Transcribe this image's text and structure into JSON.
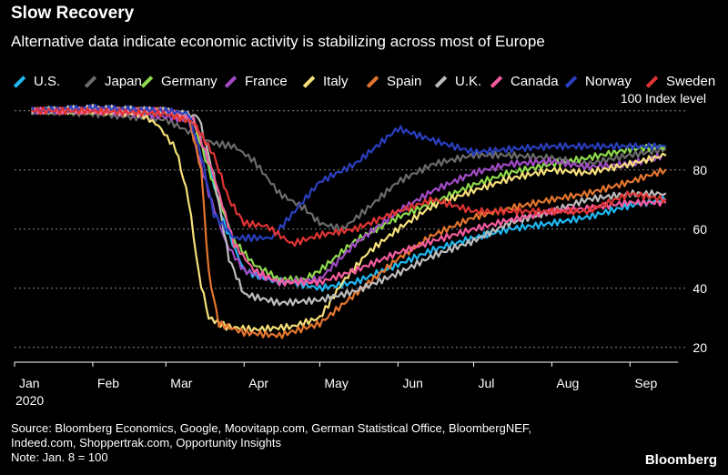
{
  "header": {
    "title": "Slow Recovery",
    "subtitle": "Alternative data indicate economic activity is stabilizing across most of Europe"
  },
  "footer": {
    "source_line1": "Source: Bloomberg Economics, Google, Moovitapp.com, German Statistical Office, BloombergNEF,",
    "source_line2": "Indeed.com, Shoppertrak.com, Opportunity Insights",
    "note": "Note: Jan. 8 = 100",
    "brand": "Bloomberg"
  },
  "chart_data": {
    "type": "line",
    "y_unit_label": "100 Index level",
    "year_label": "2020",
    "ylim": [
      15,
      103
    ],
    "y_ticks": [
      20,
      40,
      60,
      80
    ],
    "x_tick_labels": [
      "Jan",
      "Feb",
      "Mar",
      "Apr",
      "May",
      "Jun",
      "Jul",
      "Aug",
      "Sep"
    ],
    "x_tick_dates": [
      "2020-01-01",
      "2020-02-01",
      "2020-03-01",
      "2020-04-01",
      "2020-05-01",
      "2020-06-01",
      "2020-07-01",
      "2020-08-01",
      "2020-09-01"
    ],
    "xlim": [
      "2020-01-01",
      "2020-09-20"
    ],
    "grid": "horizontal dashed",
    "legend_position": "top",
    "series": [
      {
        "name": "U.S.",
        "color": "#1fb7f2",
        "points": [
          [
            "2020-01-08",
            100
          ],
          [
            "2020-02-01",
            100
          ],
          [
            "2020-03-01",
            100
          ],
          [
            "2020-03-12",
            97
          ],
          [
            "2020-03-18",
            82
          ],
          [
            "2020-03-24",
            62
          ],
          [
            "2020-04-01",
            46
          ],
          [
            "2020-04-10",
            43
          ],
          [
            "2020-04-20",
            42
          ],
          [
            "2020-05-01",
            40
          ],
          [
            "2020-05-15",
            42
          ],
          [
            "2020-06-01",
            48
          ],
          [
            "2020-06-15",
            53
          ],
          [
            "2020-07-01",
            57
          ],
          [
            "2020-07-15",
            60
          ],
          [
            "2020-08-01",
            62
          ],
          [
            "2020-08-15",
            64
          ],
          [
            "2020-09-01",
            68
          ],
          [
            "2020-09-15",
            70
          ]
        ]
      },
      {
        "name": "Japan",
        "color": "#6b6b6b",
        "points": [
          [
            "2020-01-08",
            100
          ],
          [
            "2020-02-01",
            99
          ],
          [
            "2020-03-01",
            97
          ],
          [
            "2020-03-12",
            92
          ],
          [
            "2020-03-20",
            89
          ],
          [
            "2020-03-28",
            88
          ],
          [
            "2020-04-05",
            83
          ],
          [
            "2020-04-15",
            72
          ],
          [
            "2020-04-25",
            67
          ],
          [
            "2020-05-01",
            62
          ],
          [
            "2020-05-10",
            60
          ],
          [
            "2020-05-20",
            67
          ],
          [
            "2020-06-01",
            76
          ],
          [
            "2020-06-15",
            82
          ],
          [
            "2020-07-01",
            85
          ],
          [
            "2020-07-15",
            85
          ],
          [
            "2020-08-01",
            84
          ],
          [
            "2020-08-15",
            82
          ],
          [
            "2020-09-01",
            85
          ],
          [
            "2020-09-15",
            87
          ]
        ]
      },
      {
        "name": "Germany",
        "color": "#8ed94c",
        "points": [
          [
            "2020-01-08",
            100
          ],
          [
            "2020-02-01",
            100
          ],
          [
            "2020-03-01",
            100
          ],
          [
            "2020-03-12",
            96
          ],
          [
            "2020-03-20",
            75
          ],
          [
            "2020-03-28",
            56
          ],
          [
            "2020-04-05",
            48
          ],
          [
            "2020-04-15",
            43
          ],
          [
            "2020-04-25",
            43
          ],
          [
            "2020-05-01",
            46
          ],
          [
            "2020-05-15",
            56
          ],
          [
            "2020-06-01",
            64
          ],
          [
            "2020-06-15",
            69
          ],
          [
            "2020-07-01",
            75
          ],
          [
            "2020-07-15",
            79
          ],
          [
            "2020-08-01",
            82
          ],
          [
            "2020-08-15",
            84
          ],
          [
            "2020-09-01",
            87
          ],
          [
            "2020-09-15",
            88
          ]
        ]
      },
      {
        "name": "France",
        "color": "#a24cc6",
        "points": [
          [
            "2020-01-08",
            100
          ],
          [
            "2020-02-01",
            100
          ],
          [
            "2020-02-15",
            99
          ],
          [
            "2020-03-01",
            98
          ],
          [
            "2020-03-10",
            97
          ],
          [
            "2020-03-18",
            72
          ],
          [
            "2020-03-25",
            55
          ],
          [
            "2020-04-01",
            46
          ],
          [
            "2020-04-15",
            42
          ],
          [
            "2020-05-01",
            43
          ],
          [
            "2020-05-15",
            55
          ],
          [
            "2020-06-01",
            66
          ],
          [
            "2020-06-15",
            73
          ],
          [
            "2020-07-01",
            79
          ],
          [
            "2020-07-15",
            82
          ],
          [
            "2020-08-01",
            83
          ],
          [
            "2020-08-15",
            81
          ],
          [
            "2020-09-01",
            82
          ],
          [
            "2020-09-15",
            85
          ]
        ]
      },
      {
        "name": "Italy",
        "color": "#f6e07a",
        "points": [
          [
            "2020-01-08",
            100
          ],
          [
            "2020-02-01",
            100
          ],
          [
            "2020-02-20",
            99
          ],
          [
            "2020-02-27",
            95
          ],
          [
            "2020-03-05",
            87
          ],
          [
            "2020-03-10",
            70
          ],
          [
            "2020-03-14",
            45
          ],
          [
            "2020-03-18",
            30
          ],
          [
            "2020-03-25",
            27
          ],
          [
            "2020-04-05",
            26
          ],
          [
            "2020-04-20",
            27
          ],
          [
            "2020-05-01",
            30
          ],
          [
            "2020-05-10",
            42
          ],
          [
            "2020-05-20",
            52
          ],
          [
            "2020-06-01",
            60
          ],
          [
            "2020-06-15",
            68
          ],
          [
            "2020-07-01",
            73
          ],
          [
            "2020-07-15",
            77
          ],
          [
            "2020-08-01",
            80
          ],
          [
            "2020-08-15",
            79
          ],
          [
            "2020-09-01",
            82
          ],
          [
            "2020-09-15",
            85
          ]
        ]
      },
      {
        "name": "Spain",
        "color": "#e3752e",
        "points": [
          [
            "2020-01-08",
            100
          ],
          [
            "2020-02-01",
            100
          ],
          [
            "2020-03-01",
            100
          ],
          [
            "2020-03-10",
            98
          ],
          [
            "2020-03-15",
            80
          ],
          [
            "2020-03-18",
            45
          ],
          [
            "2020-03-22",
            28
          ],
          [
            "2020-04-01",
            25
          ],
          [
            "2020-04-15",
            24
          ],
          [
            "2020-05-01",
            28
          ],
          [
            "2020-05-15",
            38
          ],
          [
            "2020-06-01",
            50
          ],
          [
            "2020-06-15",
            58
          ],
          [
            "2020-07-01",
            64
          ],
          [
            "2020-07-15",
            67
          ],
          [
            "2020-08-01",
            70
          ],
          [
            "2020-08-15",
            72
          ],
          [
            "2020-09-01",
            76
          ],
          [
            "2020-09-15",
            80
          ]
        ]
      },
      {
        "name": "U.K.",
        "color": "#bdbdbd",
        "points": [
          [
            "2020-01-08",
            100
          ],
          [
            "2020-02-01",
            101
          ],
          [
            "2020-03-01",
            100
          ],
          [
            "2020-03-14",
            98
          ],
          [
            "2020-03-20",
            78
          ],
          [
            "2020-03-26",
            50
          ],
          [
            "2020-04-01",
            38
          ],
          [
            "2020-04-15",
            35
          ],
          [
            "2020-05-01",
            36
          ],
          [
            "2020-05-15",
            39
          ],
          [
            "2020-06-01",
            45
          ],
          [
            "2020-06-15",
            51
          ],
          [
            "2020-07-01",
            56
          ],
          [
            "2020-07-15",
            62
          ],
          [
            "2020-08-01",
            66
          ],
          [
            "2020-08-15",
            70
          ],
          [
            "2020-09-01",
            72
          ],
          [
            "2020-09-15",
            72
          ]
        ]
      },
      {
        "name": "Canada",
        "color": "#f55c9f",
        "points": [
          [
            "2020-01-08",
            100
          ],
          [
            "2020-02-01",
            100
          ],
          [
            "2020-03-01",
            100
          ],
          [
            "2020-03-12",
            97
          ],
          [
            "2020-03-20",
            78
          ],
          [
            "2020-03-28",
            55
          ],
          [
            "2020-04-05",
            46
          ],
          [
            "2020-04-15",
            42
          ],
          [
            "2020-05-01",
            42
          ],
          [
            "2020-05-15",
            46
          ],
          [
            "2020-06-01",
            52
          ],
          [
            "2020-06-15",
            56
          ],
          [
            "2020-07-01",
            60
          ],
          [
            "2020-07-15",
            63
          ],
          [
            "2020-08-01",
            66
          ],
          [
            "2020-08-15",
            67
          ],
          [
            "2020-09-01",
            69
          ],
          [
            "2020-09-15",
            69
          ]
        ]
      },
      {
        "name": "Norway",
        "color": "#2a3fbf",
        "points": [
          [
            "2020-01-08",
            100
          ],
          [
            "2020-02-01",
            101
          ],
          [
            "2020-03-01",
            100
          ],
          [
            "2020-03-10",
            99
          ],
          [
            "2020-03-15",
            85
          ],
          [
            "2020-03-20",
            65
          ],
          [
            "2020-03-28",
            57
          ],
          [
            "2020-04-05",
            57
          ],
          [
            "2020-04-12",
            57
          ],
          [
            "2020-04-20",
            65
          ],
          [
            "2020-05-01",
            76
          ],
          [
            "2020-05-15",
            82
          ],
          [
            "2020-06-01",
            94
          ],
          [
            "2020-06-15",
            90
          ],
          [
            "2020-07-01",
            86
          ],
          [
            "2020-07-15",
            87
          ],
          [
            "2020-08-01",
            88
          ],
          [
            "2020-08-15",
            88
          ],
          [
            "2020-09-01",
            88
          ],
          [
            "2020-09-15",
            88
          ]
        ]
      },
      {
        "name": "Sweden",
        "color": "#e03434",
        "points": [
          [
            "2020-01-08",
            100
          ],
          [
            "2020-02-01",
            100
          ],
          [
            "2020-03-01",
            99
          ],
          [
            "2020-03-12",
            96
          ],
          [
            "2020-03-20",
            85
          ],
          [
            "2020-03-26",
            70
          ],
          [
            "2020-04-01",
            62
          ],
          [
            "2020-04-10",
            61
          ],
          [
            "2020-04-20",
            55
          ],
          [
            "2020-05-01",
            58
          ],
          [
            "2020-05-15",
            60
          ],
          [
            "2020-06-01",
            66
          ],
          [
            "2020-06-15",
            70
          ],
          [
            "2020-07-01",
            66
          ],
          [
            "2020-07-15",
            66
          ],
          [
            "2020-08-01",
            66
          ],
          [
            "2020-08-15",
            66
          ],
          [
            "2020-09-01",
            72
          ],
          [
            "2020-09-15",
            70
          ]
        ]
      }
    ]
  }
}
